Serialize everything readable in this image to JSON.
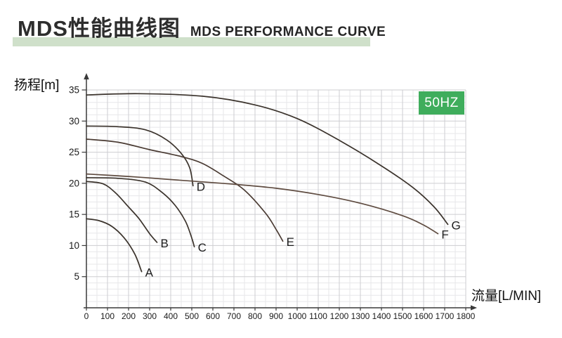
{
  "header": {
    "title_zh": "MDS性能曲线图",
    "title_en": "MDS PERFORMANCE CURVE",
    "underline_color": "#cfe0ca"
  },
  "badge": {
    "label": "50HZ",
    "bg_color": "#3fad5c",
    "text_color": "#ffffff"
  },
  "axes": {
    "y_axis_label": "扬程[m]",
    "x_axis_label": "流量[L/MIN]"
  },
  "chart_data": {
    "type": "line",
    "title": "MDS PERFORMANCE CURVE",
    "subtitle": "MDS性能曲线图",
    "frequency_badge": "50HZ",
    "xlabel": "流量[L/MIN]",
    "ylabel": "扬程[m]",
    "xlim": [
      0,
      1800
    ],
    "ylim": [
      0,
      35
    ],
    "x_ticks": [
      0,
      100,
      200,
      300,
      400,
      500,
      600,
      700,
      800,
      900,
      1000,
      1100,
      1200,
      1300,
      1400,
      1500,
      1600,
      1700,
      1800
    ],
    "y_ticks": [
      5,
      10,
      15,
      20,
      25,
      30,
      35
    ],
    "grid": {
      "x_minor_step": 50,
      "x_major_step": 100,
      "y_minor_step": 1,
      "y_major_step": 5,
      "minor_color": "#e7e7ea",
      "major_color": "#cdcdd1"
    },
    "legend_position": "curve-end-labels",
    "axis_color": "#3a3a3a",
    "tick_label_color": "#1a1a1a",
    "curve_label_color": "#1c1c1c",
    "series": [
      {
        "name": "A",
        "color": "#3b332c",
        "points": [
          [
            0,
            14.3
          ],
          [
            60,
            14.0
          ],
          [
            120,
            13.1
          ],
          [
            180,
            11.2
          ],
          [
            230,
            8.6
          ],
          [
            262,
            5.8
          ]
        ]
      },
      {
        "name": "B",
        "color": "#3b332c",
        "points": [
          [
            0,
            20.3
          ],
          [
            80,
            19.9
          ],
          [
            140,
            18.4
          ],
          [
            200,
            16.2
          ],
          [
            250,
            14.3
          ],
          [
            300,
            11.9
          ],
          [
            335,
            10.5
          ]
        ]
      },
      {
        "name": "C",
        "color": "#3b332c",
        "points": [
          [
            0,
            20.9
          ],
          [
            150,
            20.8
          ],
          [
            280,
            20.2
          ],
          [
            360,
            18.5
          ],
          [
            420,
            16.5
          ],
          [
            470,
            13.9
          ],
          [
            500,
            11.2
          ],
          [
            512,
            9.8
          ]
        ]
      },
      {
        "name": "D",
        "color": "#3b332c",
        "points": [
          [
            0,
            29.2
          ],
          [
            150,
            29.1
          ],
          [
            280,
            28.6
          ],
          [
            380,
            27.0
          ],
          [
            450,
            24.8
          ],
          [
            490,
            22.5
          ],
          [
            506,
            19.6
          ]
        ]
      },
      {
        "name": "E",
        "color": "#4a3b33",
        "points": [
          [
            0,
            27.1
          ],
          [
            150,
            26.6
          ],
          [
            300,
            25.4
          ],
          [
            450,
            24.3
          ],
          [
            550,
            23.2
          ],
          [
            650,
            21.2
          ],
          [
            750,
            18.9
          ],
          [
            850,
            15.2
          ],
          [
            900,
            12.6
          ],
          [
            932,
            10.7
          ]
        ]
      },
      {
        "name": "F",
        "color": "#5f4c41",
        "points": [
          [
            0,
            21.5
          ],
          [
            200,
            21.1
          ],
          [
            400,
            20.6
          ],
          [
            680,
            19.9
          ],
          [
            900,
            19.2
          ],
          [
            1100,
            18.2
          ],
          [
            1300,
            16.8
          ],
          [
            1500,
            14.8
          ],
          [
            1600,
            13.3
          ],
          [
            1668,
            11.9
          ]
        ]
      },
      {
        "name": "G",
        "color": "#3b332c",
        "points": [
          [
            0,
            34.2
          ],
          [
            250,
            34.4
          ],
          [
            550,
            34.0
          ],
          [
            800,
            32.6
          ],
          [
            1000,
            30.4
          ],
          [
            1200,
            26.9
          ],
          [
            1400,
            22.8
          ],
          [
            1550,
            19.3
          ],
          [
            1650,
            16.2
          ],
          [
            1715,
            13.4
          ]
        ]
      }
    ]
  }
}
